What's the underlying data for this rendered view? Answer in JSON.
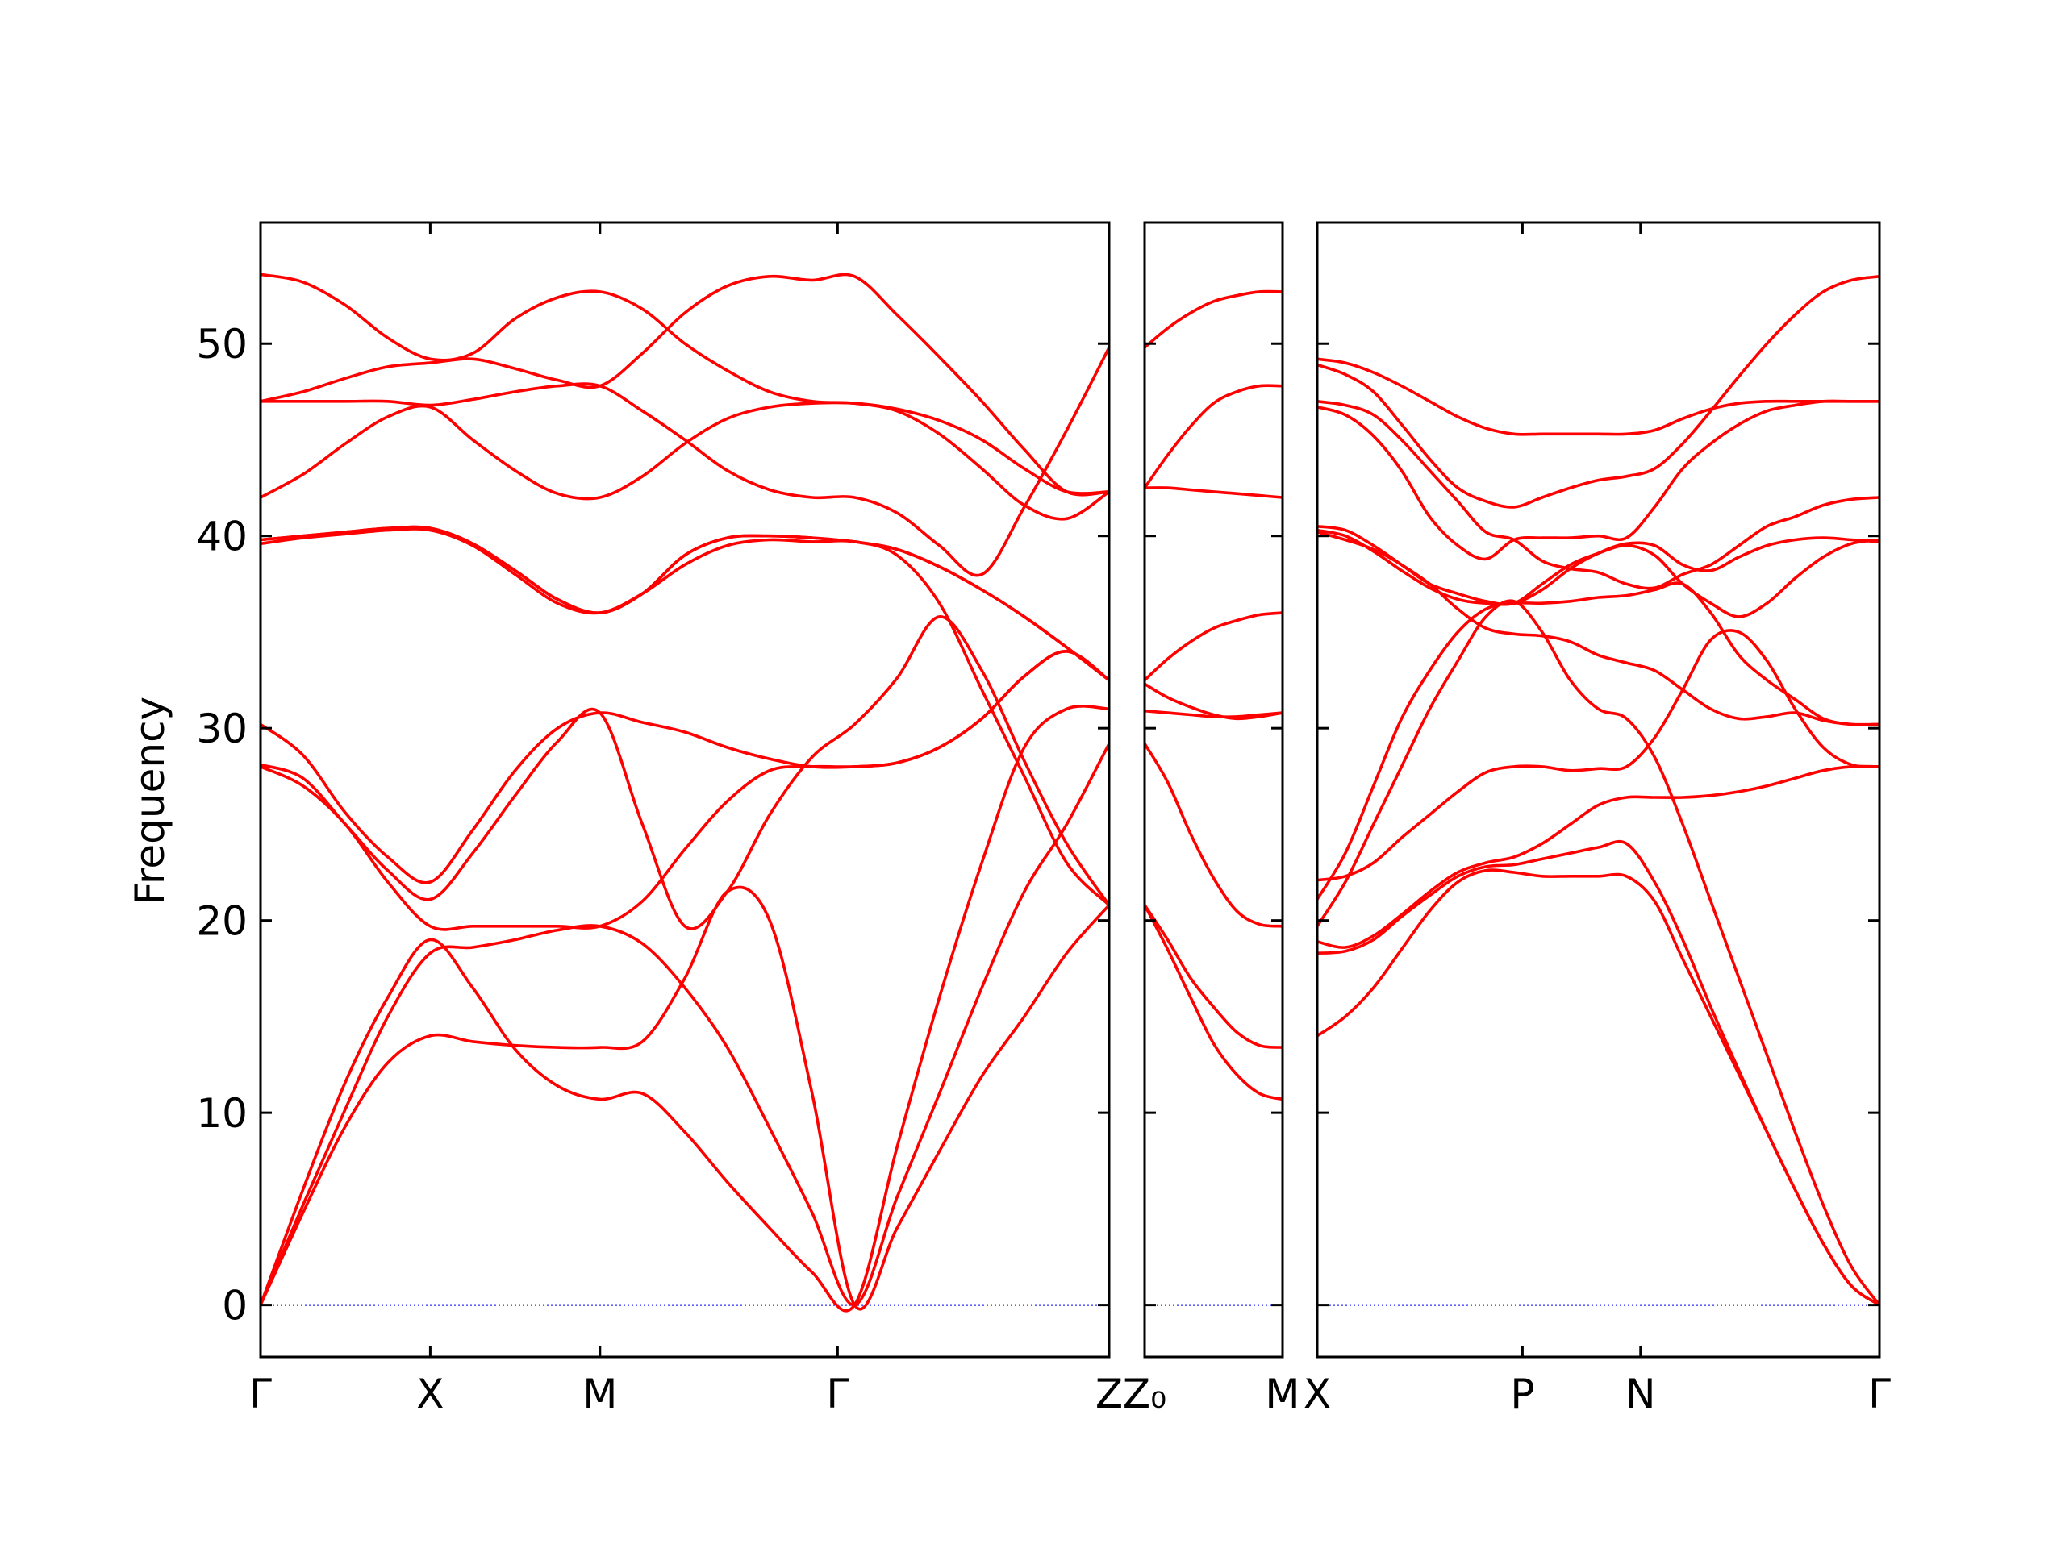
{
  "chart_data": {
    "type": "line",
    "ylabel": "Frequency",
    "xlabel": "",
    "ylim": [
      -2.7,
      56.3
    ],
    "yticks": [
      0,
      10,
      20,
      30,
      40,
      50
    ],
    "grid": false,
    "band_color": "#ff0000",
    "zero_line_color": "#0000ff",
    "panels": [
      {
        "x": [
          0,
          1,
          2,
          3,
          4,
          5,
          6,
          7,
          8,
          9,
          10,
          11,
          12,
          13,
          14,
          15,
          16,
          17,
          18,
          19,
          20
        ],
        "xlim": [
          0,
          20
        ],
        "ticks": [
          {
            "label": "Γ",
            "x": 0
          },
          {
            "label": "X",
            "x": 4
          },
          {
            "label": "M",
            "x": 8
          },
          {
            "label": "Γ",
            "x": 13.6
          },
          {
            "label": "Z",
            "x": 20
          }
        ],
        "series": [
          {
            "values": [
              0,
              4.8,
              9.3,
              12.6,
              14.0,
              13.7,
              13.5,
              13.4,
              13.4,
              13.7,
              17.0,
              21.5,
              20.0,
              11.0,
              0,
              4.0,
              8.0,
              11.9,
              15.0,
              18.3,
              20.8
            ]
          },
          {
            "values": [
              0,
              5.2,
              10.2,
              15.0,
              18.3,
              18.6,
              19.0,
              19.5,
              19.7,
              18.8,
              16.5,
              13.4,
              9.2,
              4.8,
              0,
              5.6,
              11.0,
              16.5,
              21.5,
              25.0,
              29.2
            ]
          },
          {
            "values": [
              0,
              6.0,
              11.6,
              16.0,
              19.0,
              16.5,
              13.3,
              11.4,
              10.7,
              11.0,
              9.0,
              6.4,
              4.0,
              1.7,
              0,
              8.2,
              16.0,
              23.0,
              29.0,
              31.0,
              31.0
            ]
          },
          {
            "values": [
              28.0,
              27.0,
              25.0,
              22.0,
              19.7,
              19.7,
              19.7,
              19.7,
              19.7,
              21.0,
              23.7,
              26.2,
              27.8,
              28.0,
              28.0,
              28.2,
              29.0,
              30.5,
              32.7,
              34.0,
              32.5
            ]
          },
          {
            "values": [
              28.1,
              27.4,
              25.0,
              22.6,
              21.1,
              23.5,
              26.5,
              29.3,
              30.8,
              25.0,
              19.7,
              21.5,
              25.5,
              28.5,
              30.2,
              32.6,
              35.8,
              33.0,
              28.3,
              24.0,
              20.8
            ]
          },
          {
            "values": [
              30.2,
              28.6,
              25.6,
              23.3,
              22.0,
              24.7,
              27.8,
              30.0,
              30.8,
              30.3,
              29.8,
              29.0,
              28.4,
              28.0,
              28.0,
              28.2,
              29.0,
              30.5,
              32.7,
              34.0,
              32.5
            ]
          },
          {
            "values": [
              39.6,
              39.9,
              40.1,
              40.3,
              40.3,
              39.5,
              38.0,
              36.5,
              36.0,
              37.0,
              38.5,
              39.5,
              39.8,
              39.7,
              39.7,
              39.0,
              36.5,
              32.0,
              27.5,
              23.0,
              20.8
            ]
          },
          {
            "values": [
              39.8,
              40.0,
              40.2,
              40.4,
              40.4,
              39.6,
              38.2,
              36.7,
              36.0,
              37.0,
              39.0,
              39.9,
              40.0,
              39.9,
              39.7,
              39.3,
              38.4,
              37.2,
              35.8,
              34.2,
              32.5
            ]
          },
          {
            "values": [
              39.8,
              40.0,
              40.2,
              40.4,
              40.4,
              39.6,
              38.2,
              36.7,
              36.0,
              37.0,
              39.0,
              39.9,
              40.0,
              39.9,
              39.7,
              39.3,
              38.4,
              37.2,
              35.8,
              34.2,
              32.5
            ]
          },
          {
            "values": [
              42.0,
              43.2,
              44.8,
              46.2,
              46.7,
              45.0,
              43.4,
              42.2,
              42.0,
              43.1,
              44.8,
              46.1,
              46.7,
              46.9,
              46.9,
              46.6,
              46.0,
              45.0,
              43.5,
              42.3,
              42.3
            ]
          },
          {
            "values": [
              47.0,
              47.0,
              47.0,
              47.0,
              46.8,
              47.1,
              47.5,
              47.8,
              47.8,
              46.5,
              45.0,
              43.4,
              42.4,
              42.0,
              42.0,
              41.2,
              39.5,
              38.0,
              41.5,
              45.5,
              49.8
            ]
          },
          {
            "values": [
              47.0,
              47.5,
              48.2,
              48.8,
              49.0,
              49.2,
              48.7,
              48.1,
              47.8,
              49.5,
              51.6,
              53.0,
              53.5,
              53.3,
              53.5,
              51.5,
              49.3,
              47.0,
              44.5,
              42.3,
              42.3
            ]
          },
          {
            "values": [
              53.6,
              53.2,
              52.0,
              50.3,
              49.2,
              49.5,
              51.3,
              52.4,
              52.7,
              51.8,
              50.0,
              48.6,
              47.5,
              47.0,
              46.9,
              46.5,
              45.3,
              43.5,
              41.6,
              40.9,
              42.3
            ]
          }
        ]
      },
      {
        "x": [
          0,
          1,
          2,
          3,
          4,
          5,
          6
        ],
        "xlim": [
          0,
          6
        ],
        "ticks": [
          {
            "label": "Z₀",
            "x": 0
          },
          {
            "label": "M",
            "x": 6
          }
        ],
        "series": [
          {
            "values": [
              49.8,
              50.8,
              51.6,
              52.2,
              52.5,
              52.7,
              52.7
            ]
          },
          {
            "values": [
              42.5,
              44.2,
              45.7,
              46.9,
              47.5,
              47.8,
              47.8
            ]
          },
          {
            "values": [
              42.5,
              42.5,
              42.4,
              42.3,
              42.2,
              42.1,
              42.0
            ]
          },
          {
            "values": [
              32.5,
              33.6,
              34.5,
              35.2,
              35.6,
              35.9,
              36.0
            ]
          },
          {
            "values": [
              32.3,
              31.6,
              31.1,
              30.7,
              30.5,
              30.6,
              30.8
            ]
          },
          {
            "values": [
              30.9,
              30.8,
              30.7,
              30.6,
              30.6,
              30.7,
              30.8
            ]
          },
          {
            "values": [
              29.2,
              27.2,
              24.5,
              22.2,
              20.5,
              19.8,
              19.7
            ]
          },
          {
            "values": [
              20.8,
              19.0,
              17.0,
              15.5,
              14.2,
              13.5,
              13.4
            ]
          },
          {
            "values": [
              20.8,
              18.5,
              16.0,
              13.6,
              12.0,
              11.0,
              10.7
            ]
          }
        ]
      },
      {
        "x": [
          0,
          1,
          2,
          3,
          4,
          5,
          6,
          7,
          8,
          9,
          10,
          11,
          12,
          13,
          14,
          15,
          16,
          17,
          18,
          19,
          20
        ],
        "xlim": [
          0,
          20
        ],
        "ticks": [
          {
            "label": "X",
            "x": 0
          },
          {
            "label": "P",
            "x": 7.3
          },
          {
            "label": "N",
            "x": 11.5
          },
          {
            "label": "Γ",
            "x": 20
          }
        ],
        "series": [
          {
            "values": [
              14.0,
              15.0,
              16.5,
              18.5,
              20.5,
              22.0,
              22.6,
              22.5,
              22.3,
              22.3,
              22.3,
              22.3,
              21.0,
              18.0,
              15.0,
              12.0,
              9.0,
              6.0,
              3.2,
              1.0,
              0
            ]
          },
          {
            "values": [
              18.3,
              18.4,
              19.0,
              20.2,
              21.3,
              22.3,
              22.8,
              22.9,
              23.2,
              23.5,
              23.8,
              24.0,
              22.0,
              19.0,
              15.5,
              12.2,
              9.0,
              6.0,
              3.2,
              1.0,
              0
            ]
          },
          {
            "values": [
              18.9,
              18.6,
              19.2,
              20.3,
              21.5,
              22.5,
              23.0,
              23.3,
              24.0,
              25.0,
              26.0,
              26.4,
              26.4,
              26.4,
              26.5,
              26.7,
              27.0,
              27.4,
              27.8,
              28.0,
              28.0
            ]
          },
          {
            "values": [
              19.7,
              22.0,
              25.0,
              28.0,
              31.0,
              33.5,
              35.8,
              36.6,
              35.0,
              32.5,
              31.0,
              30.5,
              28.5,
              25.0,
              21.0,
              17.0,
              13.0,
              9.0,
              5.2,
              2.0,
              0
            ]
          },
          {
            "values": [
              21.1,
              23.5,
              27.0,
              30.5,
              33.0,
              35.0,
              36.2,
              36.5,
              36.5,
              36.6,
              36.8,
              36.9,
              37.2,
              37.5,
              36.0,
              33.8,
              32.5,
              31.5,
              30.5,
              30.2,
              30.2
            ]
          },
          {
            "values": [
              22.1,
              22.3,
              23.0,
              24.3,
              25.5,
              26.7,
              27.7,
              28.0,
              28.0,
              27.8,
              27.9,
              28.0,
              29.5,
              32.0,
              34.6,
              35.0,
              33.5,
              31.0,
              29.0,
              28.1,
              28.0
            ]
          },
          {
            "values": [
              40.2,
              39.8,
              39.3,
              38.5,
              37.5,
              36.2,
              35.2,
              34.9,
              34.8,
              34.5,
              33.8,
              33.4,
              33.0,
              32.0,
              31.0,
              30.5,
              30.6,
              30.8,
              30.4,
              30.2,
              30.2
            ]
          },
          {
            "values": [
              40.3,
              40.0,
              39.2,
              38.2,
              37.3,
              36.7,
              36.5,
              36.5,
              37.2,
              38.3,
              39.1,
              39.6,
              39.5,
              38.5,
              38.2,
              38.9,
              39.5,
              39.8,
              39.9,
              39.8,
              39.7
            ]
          },
          {
            "values": [
              40.5,
              40.3,
              39.5,
              38.5,
              37.5,
              37.0,
              36.6,
              36.5,
              37.5,
              38.5,
              39.1,
              39.5,
              39.0,
              37.5,
              36.5,
              35.8,
              36.5,
              37.8,
              38.9,
              39.6,
              39.8
            ]
          },
          {
            "values": [
              46.7,
              46.3,
              45.2,
              43.4,
              41.0,
              39.5,
              38.8,
              39.8,
              39.9,
              39.9,
              40.0,
              39.9,
              41.5,
              43.5,
              44.8,
              45.8,
              46.5,
              46.8,
              47.0,
              47.0,
              47.0
            ]
          },
          {
            "values": [
              47.0,
              46.8,
              46.3,
              45.0,
              43.4,
              41.8,
              40.2,
              39.8,
              38.7,
              38.3,
              38.1,
              37.5,
              37.3,
              38.0,
              38.5,
              39.5,
              40.5,
              41.0,
              41.6,
              41.9,
              42.0
            ]
          },
          {
            "values": [
              48.9,
              48.4,
              47.5,
              45.8,
              44.0,
              42.5,
              41.8,
              41.5,
              42.0,
              42.5,
              42.9,
              43.1,
              43.5,
              44.8,
              46.5,
              48.3,
              50.0,
              51.5,
              52.7,
              53.3,
              53.5
            ]
          },
          {
            "values": [
              49.2,
              49.0,
              48.5,
              47.8,
              47.0,
              46.2,
              45.6,
              45.3,
              45.3,
              45.3,
              45.3,
              45.3,
              45.5,
              46.1,
              46.6,
              46.9,
              47.0,
              47.0,
              47.0,
              47.0,
              47.0
            ]
          }
        ]
      }
    ]
  }
}
